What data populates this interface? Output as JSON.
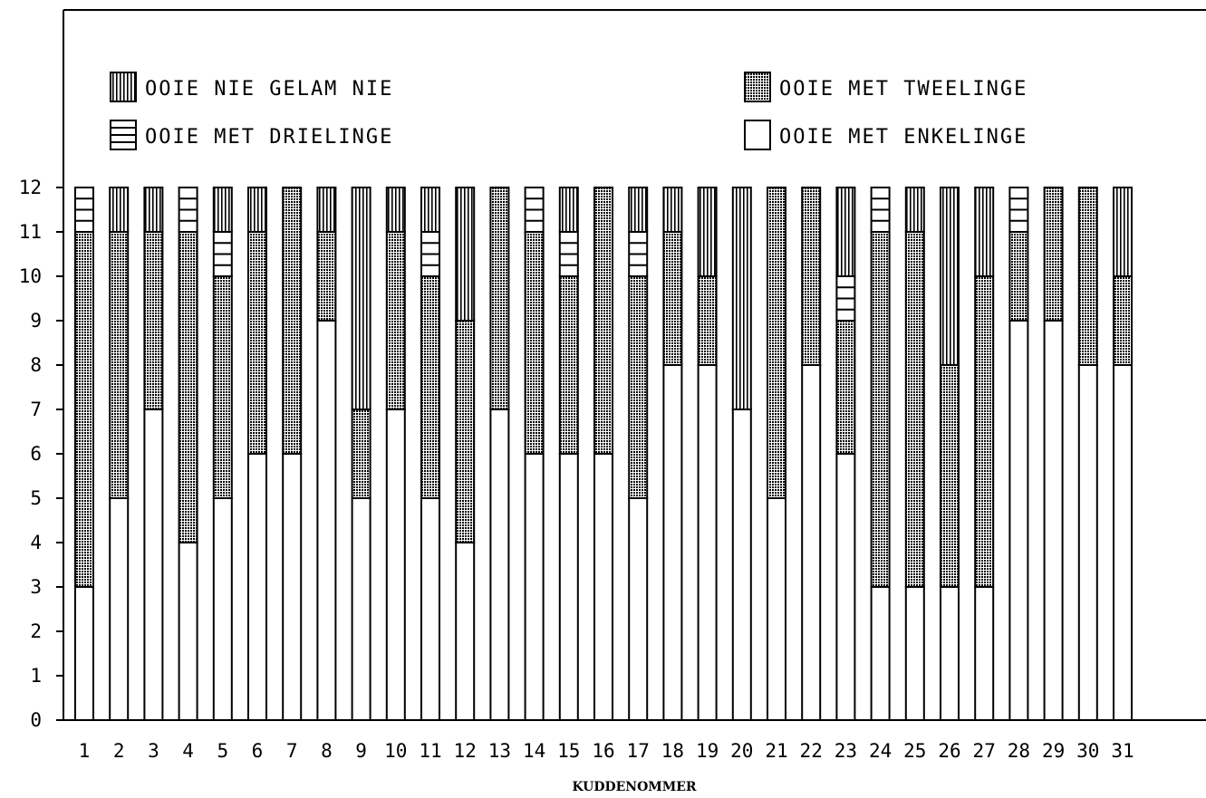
{
  "chart_data": {
    "type": "bar",
    "stacked": true,
    "title": "",
    "xlabel": "KUDDENOMMER",
    "ylabel": "",
    "ylim": [
      0,
      12
    ],
    "y_ticks": [
      0,
      1,
      2,
      3,
      4,
      5,
      6,
      7,
      8,
      9,
      10,
      11,
      12
    ],
    "grid": false,
    "legend_position": "top",
    "categories": [
      "1",
      "2",
      "3",
      "4",
      "5",
      "6",
      "7",
      "8",
      "9",
      "10",
      "11",
      "12",
      "13",
      "14",
      "15",
      "16",
      "17",
      "18",
      "19",
      "20",
      "21",
      "22",
      "23",
      "24",
      "25",
      "26",
      "27",
      "28",
      "29",
      "30",
      "31"
    ],
    "series": [
      {
        "name": "OOIE MET ENKELINGE",
        "pattern": "white",
        "values": [
          3,
          5,
          7,
          4,
          5,
          6,
          6,
          9,
          5,
          7,
          5,
          4,
          7,
          6,
          6,
          6,
          5,
          8,
          8,
          7,
          5,
          8,
          6,
          3,
          3,
          3,
          3,
          9,
          9,
          8,
          8
        ]
      },
      {
        "name": "OOIE MET TWEELINGE",
        "pattern": "dots",
        "values": [
          8,
          6,
          4,
          7,
          5,
          5,
          6,
          2,
          2,
          4,
          5,
          5,
          5,
          5,
          4,
          6,
          5,
          3,
          2,
          0,
          7,
          4,
          3,
          8,
          8,
          5,
          7,
          2,
          3,
          4,
          2
        ]
      },
      {
        "name": "OOIE MET DRIELINGE",
        "pattern": "horizontal",
        "values": [
          1,
          0,
          0,
          1,
          1,
          0,
          0,
          0,
          0,
          0,
          1,
          0,
          0,
          1,
          1,
          0,
          1,
          0,
          0,
          0,
          0,
          0,
          1,
          1,
          0,
          0,
          0,
          1,
          0,
          0,
          0
        ]
      },
      {
        "name": "OOIE NIE GELAM NIE",
        "pattern": "vertical",
        "values": [
          0,
          1,
          1,
          0,
          1,
          1,
          0,
          1,
          5,
          1,
          1,
          3,
          0,
          0,
          1,
          0,
          1,
          1,
          2,
          5,
          0,
          0,
          2,
          0,
          1,
          4,
          2,
          0,
          0,
          0,
          2
        ]
      }
    ],
    "legend": [
      {
        "series": "OOIE NIE GELAM NIE",
        "label": "OOIE NIE GELAM NIE",
        "pattern": "vertical"
      },
      {
        "series": "OOIE MET TWEELINGE",
        "label": "OOIE MET TWEELINGE",
        "pattern": "dots"
      },
      {
        "series": "OOIE MET DRIELINGE",
        "label": "OOIE MET DRIELINGE",
        "pattern": "horizontal"
      },
      {
        "series": "OOIE MET ENKELINGE",
        "label": "OOIE MET ENKELINGE",
        "pattern": "white"
      }
    ],
    "colors": {
      "ink": "#000000",
      "background": "#ffffff"
    }
  }
}
